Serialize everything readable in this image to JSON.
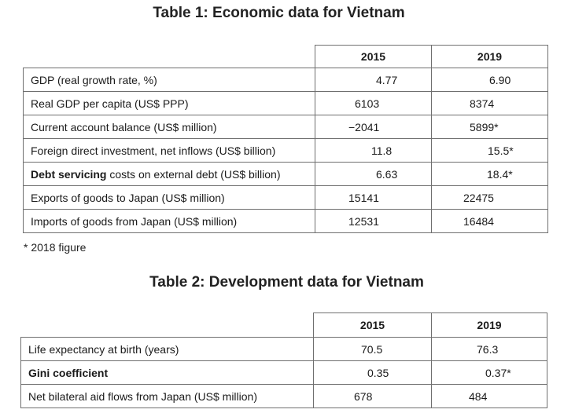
{
  "table1": {
    "title": "Table 1: Economic data for Vietnam",
    "years": [
      "2015",
      "2019"
    ],
    "rows": [
      {
        "label": "GDP (real growth rate, %)",
        "v2015": "4.77",
        "v2019": "6.90"
      },
      {
        "label": "Real GDP per capita (US$ PPP)",
        "v2015": "6103",
        "v2019": "8374"
      },
      {
        "label": "Current account balance (US$ million)",
        "v2015": "−2041",
        "v2019": "5899*"
      },
      {
        "label": "Foreign direct investment, net inflows (US$ billion)",
        "v2015": "11.8",
        "v2019": "15.5*"
      },
      {
        "label_bold": "Debt servicing",
        "label_rest": " costs on external debt (US$ billion)",
        "v2015": "6.63",
        "v2019": "18.4*"
      },
      {
        "label": "Exports of goods to Japan (US$ million)",
        "v2015": "15141",
        "v2019": "22475"
      },
      {
        "label": "Imports of goods from Japan (US$ million)",
        "v2015": "12531",
        "v2019": "16484"
      }
    ],
    "footnote": "* 2018 figure"
  },
  "table2": {
    "title": "Table 2: Development data for Vietnam",
    "years": [
      "2015",
      "2019"
    ],
    "rows": [
      {
        "label": "Life expectancy at birth (years)",
        "v2015": "70.5",
        "v2019": "76.3"
      },
      {
        "label": "Gini coefficient",
        "v2015": "0.35",
        "v2019": "0.37*"
      },
      {
        "label": "Net bilateral aid flows from Japan (US$ million)",
        "v2015": "678",
        "v2019": "484"
      }
    ]
  }
}
